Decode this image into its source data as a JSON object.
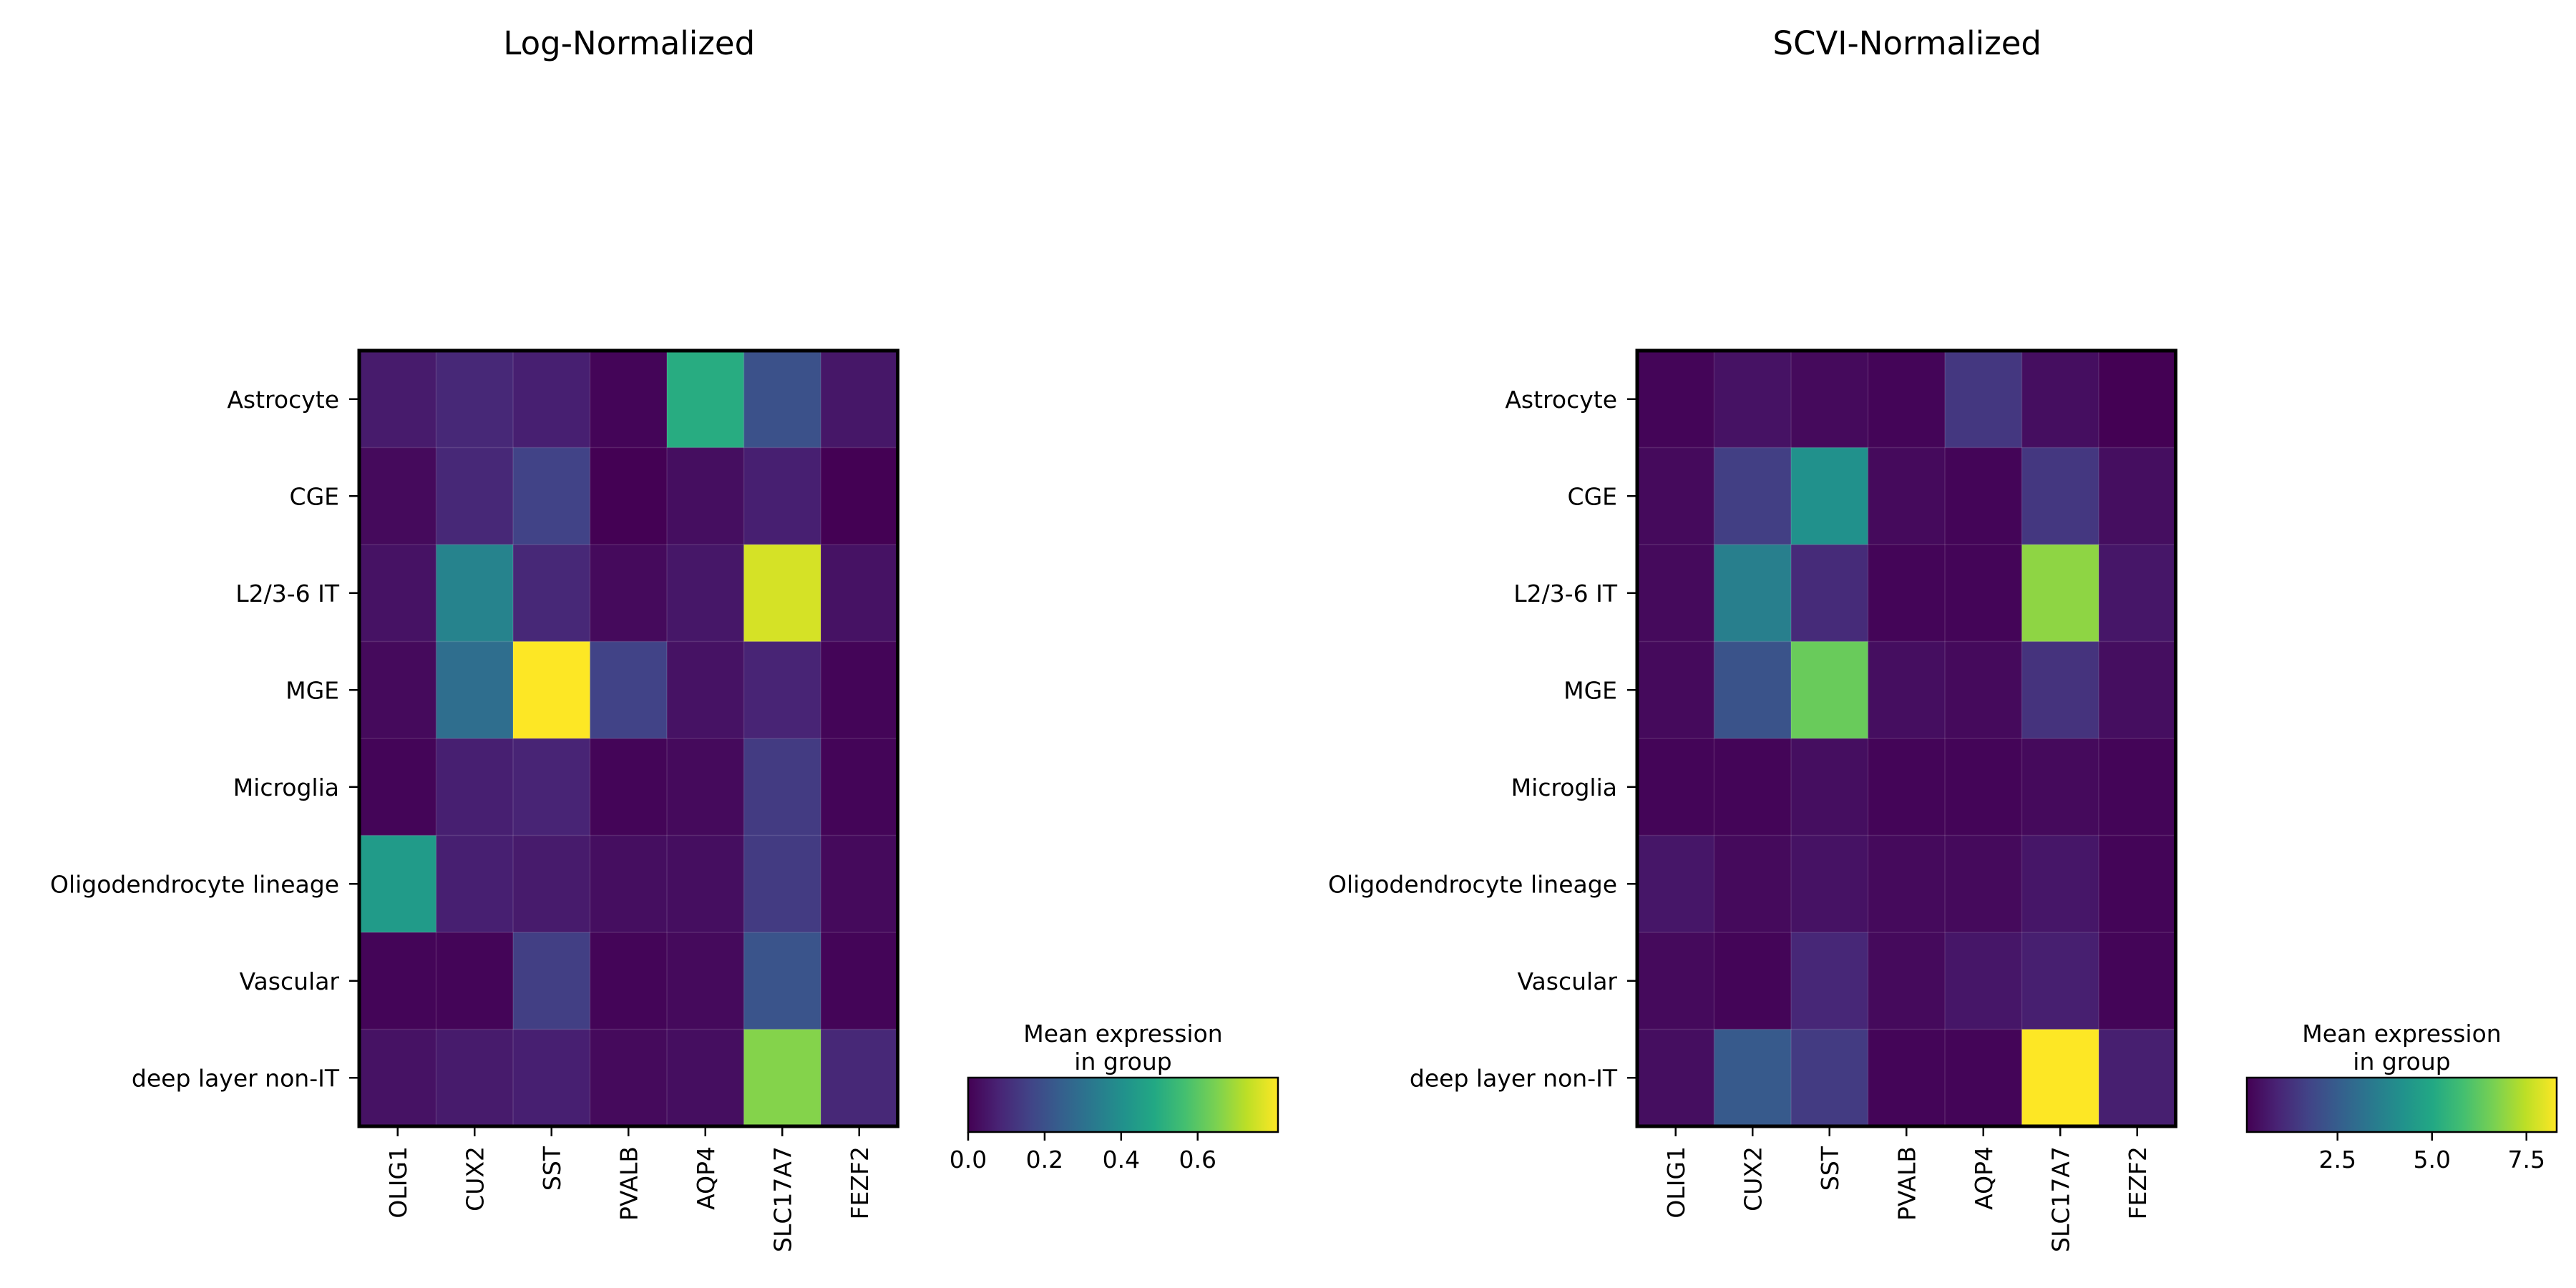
{
  "chart_data": [
    {
      "type": "heatmap",
      "title": "Log-Normalized",
      "rows": [
        "Astrocyte",
        "CGE",
        "L2/3-6 IT",
        "MGE",
        "Microglia",
        "Oligodendrocyte lineage",
        "Vascular",
        "deep layer non-IT"
      ],
      "columns": [
        "OLIG1",
        "CUX2",
        "SST",
        "PVALB",
        "AQP4",
        "SLC17A7",
        "FEZF2"
      ],
      "values": [
        [
          0.06,
          0.09,
          0.07,
          0.01,
          0.5,
          0.2,
          0.05
        ],
        [
          0.02,
          0.09,
          0.16,
          0.0,
          0.03,
          0.07,
          0.0
        ],
        [
          0.04,
          0.36,
          0.09,
          0.02,
          0.05,
          0.76,
          0.04
        ],
        [
          0.02,
          0.29,
          0.81,
          0.16,
          0.04,
          0.08,
          0.01
        ],
        [
          0.01,
          0.07,
          0.08,
          0.01,
          0.02,
          0.14,
          0.01
        ],
        [
          0.44,
          0.07,
          0.06,
          0.03,
          0.03,
          0.14,
          0.02
        ],
        [
          0.01,
          0.01,
          0.15,
          0.01,
          0.02,
          0.21,
          0.01
        ],
        [
          0.04,
          0.06,
          0.07,
          0.02,
          0.03,
          0.66,
          0.09
        ]
      ],
      "vmin": 0.0,
      "vmax": 0.81,
      "colormap": "viridis",
      "colorbar": {
        "title_line1": "Mean expression",
        "title_line2": "in group",
        "ticks": [
          "0.0",
          "0.2",
          "0.4",
          "0.6"
        ],
        "tick_values": [
          0.0,
          0.2,
          0.4,
          0.6
        ]
      }
    },
    {
      "type": "heatmap",
      "title": "SCVI-Normalized",
      "rows": [
        "Astrocyte",
        "CGE",
        "L2/3-6 IT",
        "MGE",
        "Microglia",
        "Oligodendrocyte lineage",
        "Vascular",
        "deep layer non-IT"
      ],
      "columns": [
        "OLIG1",
        "CUX2",
        "SST",
        "PVALB",
        "AQP4",
        "SLC17A7",
        "FEZF2"
      ],
      "values": [
        [
          0.2,
          0.5,
          0.3,
          0.2,
          1.4,
          0.4,
          0.1
        ],
        [
          0.3,
          1.6,
          4.2,
          0.3,
          0.2,
          1.4,
          0.4
        ],
        [
          0.3,
          3.6,
          1.1,
          0.2,
          0.2,
          6.9,
          0.6
        ],
        [
          0.3,
          2.2,
          6.4,
          0.4,
          0.3,
          1.3,
          0.4
        ],
        [
          0.2,
          0.2,
          0.4,
          0.2,
          0.2,
          0.3,
          0.2
        ],
        [
          0.6,
          0.3,
          0.5,
          0.3,
          0.3,
          0.6,
          0.2
        ],
        [
          0.3,
          0.2,
          1.0,
          0.3,
          0.6,
          0.8,
          0.2
        ],
        [
          0.4,
          2.4,
          1.5,
          0.2,
          0.2,
          8.3,
          0.8
        ]
      ],
      "vmin": 0.1,
      "vmax": 8.3,
      "colormap": "viridis",
      "colorbar": {
        "title_line1": "Mean expression",
        "title_line2": "in group",
        "ticks": [
          "2.5",
          "5.0",
          "7.5"
        ],
        "tick_values": [
          2.5,
          5.0,
          7.5
        ]
      }
    }
  ]
}
